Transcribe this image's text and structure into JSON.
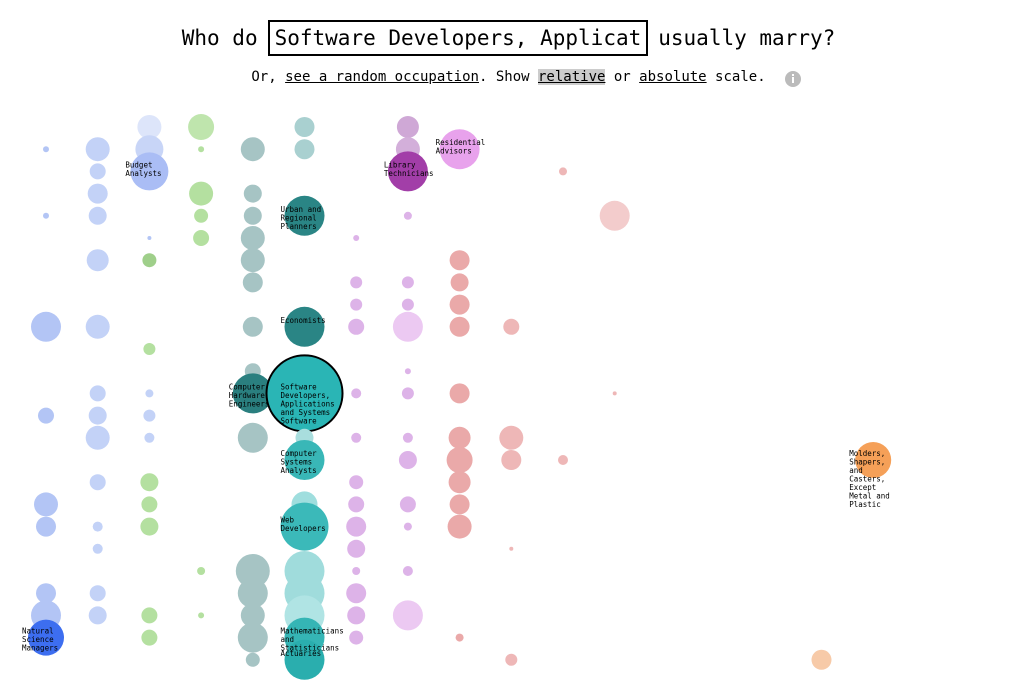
{
  "header": {
    "title_prefix": "Who do",
    "input_value": "Software Developers, Applicat",
    "title_suffix": "usually marry?",
    "line": [
      "Or,",
      "see a random occupation",
      ". Show",
      "relative",
      "or",
      "absolute",
      "scale."
    ]
  },
  "chart_data": {
    "type": "bubble-grid",
    "bubbles": [
      {
        "c": 0,
        "r": 1,
        "value": 9,
        "color": "#b3c5f5"
      },
      {
        "c": 0,
        "r": 4,
        "value": 9,
        "color": "#b3c5f5"
      },
      {
        "c": 0,
        "r": 9,
        "value": 225,
        "color": "#b3c5f5"
      },
      {
        "c": 0,
        "r": 13,
        "value": 64,
        "color": "#b3c5f5"
      },
      {
        "c": 0,
        "r": 17,
        "value": 144,
        "color": "#b3c5f5"
      },
      {
        "c": 0,
        "r": 18,
        "value": 100,
        "color": "#b3c5f5"
      },
      {
        "c": 0,
        "r": 21,
        "value": 100,
        "color": "#b3c5f5"
      },
      {
        "c": 0,
        "r": 22,
        "value": 225,
        "color": "#b3c5f5"
      },
      {
        "c": 0,
        "r": 23,
        "value": 324,
        "color": "#3d6ef0",
        "label": "Natural Science Managers"
      },
      {
        "c": 1,
        "r": 1,
        "value": 144,
        "color": "#c3d2f7"
      },
      {
        "c": 1,
        "r": 2,
        "value": 64,
        "color": "#c3d2f7"
      },
      {
        "c": 1,
        "r": 3,
        "value": 100,
        "color": "#c3d2f7"
      },
      {
        "c": 1,
        "r": 4,
        "value": 81,
        "color": "#c3d2f7"
      },
      {
        "c": 1,
        "r": 6,
        "value": 121,
        "color": "#c3d2f7"
      },
      {
        "c": 1,
        "r": 9,
        "value": 144,
        "color": "#c3d2f7"
      },
      {
        "c": 1,
        "r": 12,
        "value": 64,
        "color": "#c3d2f7"
      },
      {
        "c": 1,
        "r": 13,
        "value": 81,
        "color": "#c3d2f7"
      },
      {
        "c": 1,
        "r": 14,
        "value": 144,
        "color": "#c3d2f7"
      },
      {
        "c": 1,
        "r": 16,
        "value": 64,
        "color": "#c3d2f7"
      },
      {
        "c": 1,
        "r": 18,
        "value": 25,
        "color": "#c3d2f7"
      },
      {
        "c": 1,
        "r": 19,
        "value": 25,
        "color": "#c3d2f7"
      },
      {
        "c": 1,
        "r": 21,
        "value": 64,
        "color": "#c3d2f7"
      },
      {
        "c": 1,
        "r": 22,
        "value": 81,
        "color": "#c3d2f7"
      },
      {
        "c": 2,
        "r": 0,
        "value": 144,
        "color": "#dde5fa"
      },
      {
        "c": 2,
        "r": 1,
        "value": 196,
        "color": "#c8d5f7"
      },
      {
        "c": 2,
        "r": 2,
        "value": 361,
        "color": "#aabdf5",
        "label": "Budget Analysts"
      },
      {
        "c": 2,
        "r": 5,
        "value": 4,
        "color": "#b3c5f5"
      },
      {
        "c": 2,
        "r": 6,
        "value": 49,
        "color": "#9fcf8a"
      },
      {
        "c": 2,
        "r": 10,
        "value": 36,
        "color": "#b4e0a0"
      },
      {
        "c": 2,
        "r": 12,
        "value": 16,
        "color": "#c3d2f7"
      },
      {
        "c": 2,
        "r": 13,
        "value": 36,
        "color": "#c3d2f7"
      },
      {
        "c": 2,
        "r": 14,
        "value": 25,
        "color": "#c3d2f7"
      },
      {
        "c": 2,
        "r": 16,
        "value": 81,
        "color": "#b4e0a0"
      },
      {
        "c": 2,
        "r": 17,
        "value": 64,
        "color": "#b4e0a0"
      },
      {
        "c": 2,
        "r": 18,
        "value": 81,
        "color": "#b4e0a0"
      },
      {
        "c": 2,
        "r": 22,
        "value": 64,
        "color": "#b4e0a0"
      },
      {
        "c": 2,
        "r": 23,
        "value": 64,
        "color": "#b4e0a0"
      },
      {
        "c": 3,
        "r": 0,
        "value": 169,
        "color": "#bfe5ad"
      },
      {
        "c": 3,
        "r": 1,
        "value": 9,
        "color": "#b4e0a0"
      },
      {
        "c": 3,
        "r": 3,
        "value": 144,
        "color": "#b4e0a0"
      },
      {
        "c": 3,
        "r": 4,
        "value": 49,
        "color": "#b4e0a0"
      },
      {
        "c": 3,
        "r": 5,
        "value": 64,
        "color": "#b4e0a0"
      },
      {
        "c": 3,
        "r": 20,
        "value": 16,
        "color": "#b4e0a0"
      },
      {
        "c": 3,
        "r": 22,
        "value": 9,
        "color": "#b4e0a0"
      },
      {
        "c": 4,
        "r": 1,
        "value": 144,
        "color": "#a6c4c4"
      },
      {
        "c": 4,
        "r": 3,
        "value": 81,
        "color": "#a6c4c4"
      },
      {
        "c": 4,
        "r": 4,
        "value": 81,
        "color": "#a6c4c4"
      },
      {
        "c": 4,
        "r": 5,
        "value": 144,
        "color": "#a6c4c4"
      },
      {
        "c": 4,
        "r": 6,
        "value": 144,
        "color": "#a6c4c4"
      },
      {
        "c": 4,
        "r": 7,
        "value": 100,
        "color": "#a6c4c4"
      },
      {
        "c": 4,
        "r": 9,
        "value": 100,
        "color": "#a6c4c4"
      },
      {
        "c": 4,
        "r": 11,
        "value": 64,
        "color": "#a6c4c4"
      },
      {
        "c": 4,
        "r": 12,
        "value": 400,
        "color": "#2a7f7f",
        "label": "Computer Hardware Engineers"
      },
      {
        "c": 4,
        "r": 14,
        "value": 225,
        "color": "#a6c4c4"
      },
      {
        "c": 4,
        "r": 20,
        "value": 289,
        "color": "#a6c4c4"
      },
      {
        "c": 4,
        "r": 21,
        "value": 225,
        "color": "#a6c4c4"
      },
      {
        "c": 4,
        "r": 22,
        "value": 144,
        "color": "#a6c4c4"
      },
      {
        "c": 4,
        "r": 23,
        "value": 225,
        "color": "#a6c4c4"
      },
      {
        "c": 4,
        "r": 24,
        "value": 49,
        "color": "#a6c4c4"
      },
      {
        "c": 5,
        "r": 0,
        "value": 100,
        "color": "#a9d0d0"
      },
      {
        "c": 5,
        "r": 1,
        "value": 100,
        "color": "#a9d0d0"
      },
      {
        "c": 5,
        "r": 4,
        "value": 400,
        "color": "#2a8585",
        "label": "Urban and Regional Planners"
      },
      {
        "c": 5,
        "r": 9,
        "value": 400,
        "color": "#2a8585",
        "label": "Economists"
      },
      {
        "c": 5,
        "r": 12,
        "value": 1444,
        "color": "#2ab5b5",
        "label": "Software Developers, Applications and Systems Software"
      },
      {
        "c": 5,
        "r": 14,
        "value": 81,
        "color": "#a9dede"
      },
      {
        "c": 5,
        "r": 15,
        "value": 400,
        "color": "#39b7b7",
        "label": "Computer Systems Analysts"
      },
      {
        "c": 5,
        "r": 17,
        "value": 169,
        "color": "#9fdede"
      },
      {
        "c": 5,
        "r": 18,
        "value": 576,
        "color": "#3bb9b9",
        "label": "Web Developers"
      },
      {
        "c": 5,
        "r": 20,
        "value": 400,
        "color": "#a0dcdc"
      },
      {
        "c": 5,
        "r": 21,
        "value": 400,
        "color": "#a0dcdc"
      },
      {
        "c": 5,
        "r": 22,
        "value": 400,
        "color": "#b0e4e4"
      },
      {
        "c": 5,
        "r": 23,
        "value": 400,
        "color": "#35b5b5",
        "label": "Mathematicians and Statisticians"
      },
      {
        "c": 5,
        "r": 24,
        "value": 400,
        "color": "#2aaeae",
        "label": "Actuaries"
      },
      {
        "c": 6,
        "r": 5,
        "value": 9,
        "color": "#ddb3e8"
      },
      {
        "c": 6,
        "r": 7,
        "value": 36,
        "color": "#ddb3e8"
      },
      {
        "c": 6,
        "r": 8,
        "value": 36,
        "color": "#ddb3e8"
      },
      {
        "c": 6,
        "r": 9,
        "value": 64,
        "color": "#ddb3e8"
      },
      {
        "c": 6,
        "r": 12,
        "value": 25,
        "color": "#ddb3e8"
      },
      {
        "c": 6,
        "r": 14,
        "value": 25,
        "color": "#ddb3e8"
      },
      {
        "c": 6,
        "r": 16,
        "value": 49,
        "color": "#ddb3e8"
      },
      {
        "c": 6,
        "r": 17,
        "value": 64,
        "color": "#ddb3e8"
      },
      {
        "c": 6,
        "r": 18,
        "value": 100,
        "color": "#ddb3e8"
      },
      {
        "c": 6,
        "r": 19,
        "value": 81,
        "color": "#ddb3e8"
      },
      {
        "c": 6,
        "r": 20,
        "value": 16,
        "color": "#ddb3e8"
      },
      {
        "c": 6,
        "r": 21,
        "value": 100,
        "color": "#ddb3e8"
      },
      {
        "c": 6,
        "r": 22,
        "value": 81,
        "color": "#ddb3e8"
      },
      {
        "c": 6,
        "r": 23,
        "value": 49,
        "color": "#ddb3e8"
      },
      {
        "c": 7,
        "r": 0,
        "value": 121,
        "color": "#cfa8d6"
      },
      {
        "c": 7,
        "r": 1,
        "value": 144,
        "color": "#d3afda"
      },
      {
        "c": 7,
        "r": 2,
        "value": 400,
        "color": "#a23ea8",
        "label": "Library Technicians"
      },
      {
        "c": 7,
        "r": 4,
        "value": 16,
        "color": "#ddb3e8"
      },
      {
        "c": 7,
        "r": 7,
        "value": 36,
        "color": "#ddb3e8"
      },
      {
        "c": 7,
        "r": 8,
        "value": 36,
        "color": "#ddb3e8"
      },
      {
        "c": 7,
        "r": 9,
        "value": 225,
        "color": "#ecc9f2"
      },
      {
        "c": 7,
        "r": 11,
        "value": 9,
        "color": "#ddb3e8"
      },
      {
        "c": 7,
        "r": 12,
        "value": 36,
        "color": "#ddb3e8"
      },
      {
        "c": 7,
        "r": 14,
        "value": 25,
        "color": "#ddb3e8"
      },
      {
        "c": 7,
        "r": 15,
        "value": 81,
        "color": "#ddb3e8"
      },
      {
        "c": 7,
        "r": 17,
        "value": 64,
        "color": "#ddb3e8"
      },
      {
        "c": 7,
        "r": 18,
        "value": 16,
        "color": "#ddb3e8"
      },
      {
        "c": 7,
        "r": 20,
        "value": 25,
        "color": "#ddb3e8"
      },
      {
        "c": 7,
        "r": 22,
        "value": 225,
        "color": "#ecc9f2"
      },
      {
        "c": 8,
        "r": 1,
        "value": 400,
        "color": "#e8a2ec",
        "label": "Residential Advisors"
      },
      {
        "c": 8,
        "r": 6,
        "value": 100,
        "color": "#eaa9a9"
      },
      {
        "c": 8,
        "r": 7,
        "value": 81,
        "color": "#eaa9a9"
      },
      {
        "c": 8,
        "r": 8,
        "value": 100,
        "color": "#eaa9a9"
      },
      {
        "c": 8,
        "r": 9,
        "value": 100,
        "color": "#eaa9a9"
      },
      {
        "c": 8,
        "r": 12,
        "value": 100,
        "color": "#eaa9a9"
      },
      {
        "c": 8,
        "r": 14,
        "value": 121,
        "color": "#eaa9a9"
      },
      {
        "c": 8,
        "r": 15,
        "value": 169,
        "color": "#eaa9a9"
      },
      {
        "c": 8,
        "r": 16,
        "value": 121,
        "color": "#eaa9a9"
      },
      {
        "c": 8,
        "r": 17,
        "value": 100,
        "color": "#eaa9a9"
      },
      {
        "c": 8,
        "r": 18,
        "value": 144,
        "color": "#eaa9a9"
      },
      {
        "c": 8,
        "r": 23,
        "value": 16,
        "color": "#eaa9a9"
      },
      {
        "c": 9,
        "r": 9,
        "value": 64,
        "color": "#eeb7b7"
      },
      {
        "c": 9,
        "r": 14,
        "value": 144,
        "color": "#eeb7b7"
      },
      {
        "c": 9,
        "r": 15,
        "value": 100,
        "color": "#eeb7b7"
      },
      {
        "c": 9,
        "r": 19,
        "value": 4,
        "color": "#eeb7b7"
      },
      {
        "c": 9,
        "r": 24,
        "value": 36,
        "color": "#eeb7b7"
      },
      {
        "c": 10,
        "r": 2,
        "value": 16,
        "color": "#eeb7b7"
      },
      {
        "c": 10,
        "r": 15,
        "value": 25,
        "color": "#eeb7b7"
      },
      {
        "c": 11,
        "r": 4,
        "value": 225,
        "color": "#f3cccc"
      },
      {
        "c": 11,
        "r": 12,
        "value": 4,
        "color": "#eeb7b7"
      },
      {
        "c": 15,
        "r": 24,
        "value": 100,
        "color": "#f7caa8"
      },
      {
        "c": 16,
        "r": 15,
        "value": 324,
        "color": "#f5a058",
        "label": "Molders, Shapers, and Casters, Except Metal and Plastic"
      }
    ]
  }
}
